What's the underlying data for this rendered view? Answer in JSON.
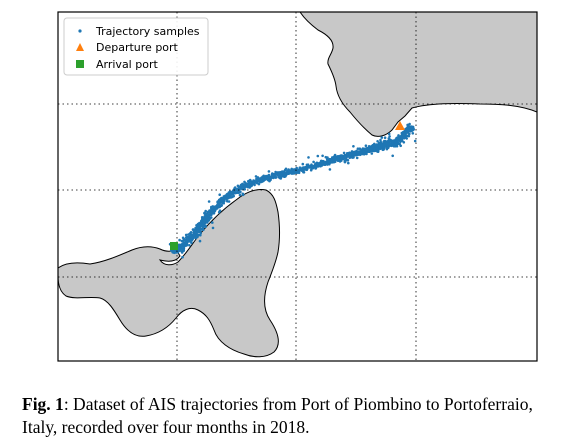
{
  "chart_data": {
    "type": "scatter",
    "title": "",
    "xlabel": "",
    "ylabel": "",
    "grid": true,
    "grid_style": "dotted",
    "legend_position": "top-left",
    "colors": {
      "trajectory": "#1f77b4",
      "departure": "#ff7f0e",
      "arrival": "#2ca02c",
      "land": "#c8c8c8",
      "coast": "#000000"
    },
    "series": [
      {
        "name": "Trajectory samples",
        "marker": "point"
      },
      {
        "name": "Departure port",
        "marker": "triangle"
      },
      {
        "name": "Arrival port",
        "marker": "square"
      }
    ]
  },
  "caption": {
    "label": "Fig. 1",
    "text": ": Dataset of AIS trajectories from Port of Piombino to Portoferraio, Italy, recorded over four months in 2018."
  }
}
